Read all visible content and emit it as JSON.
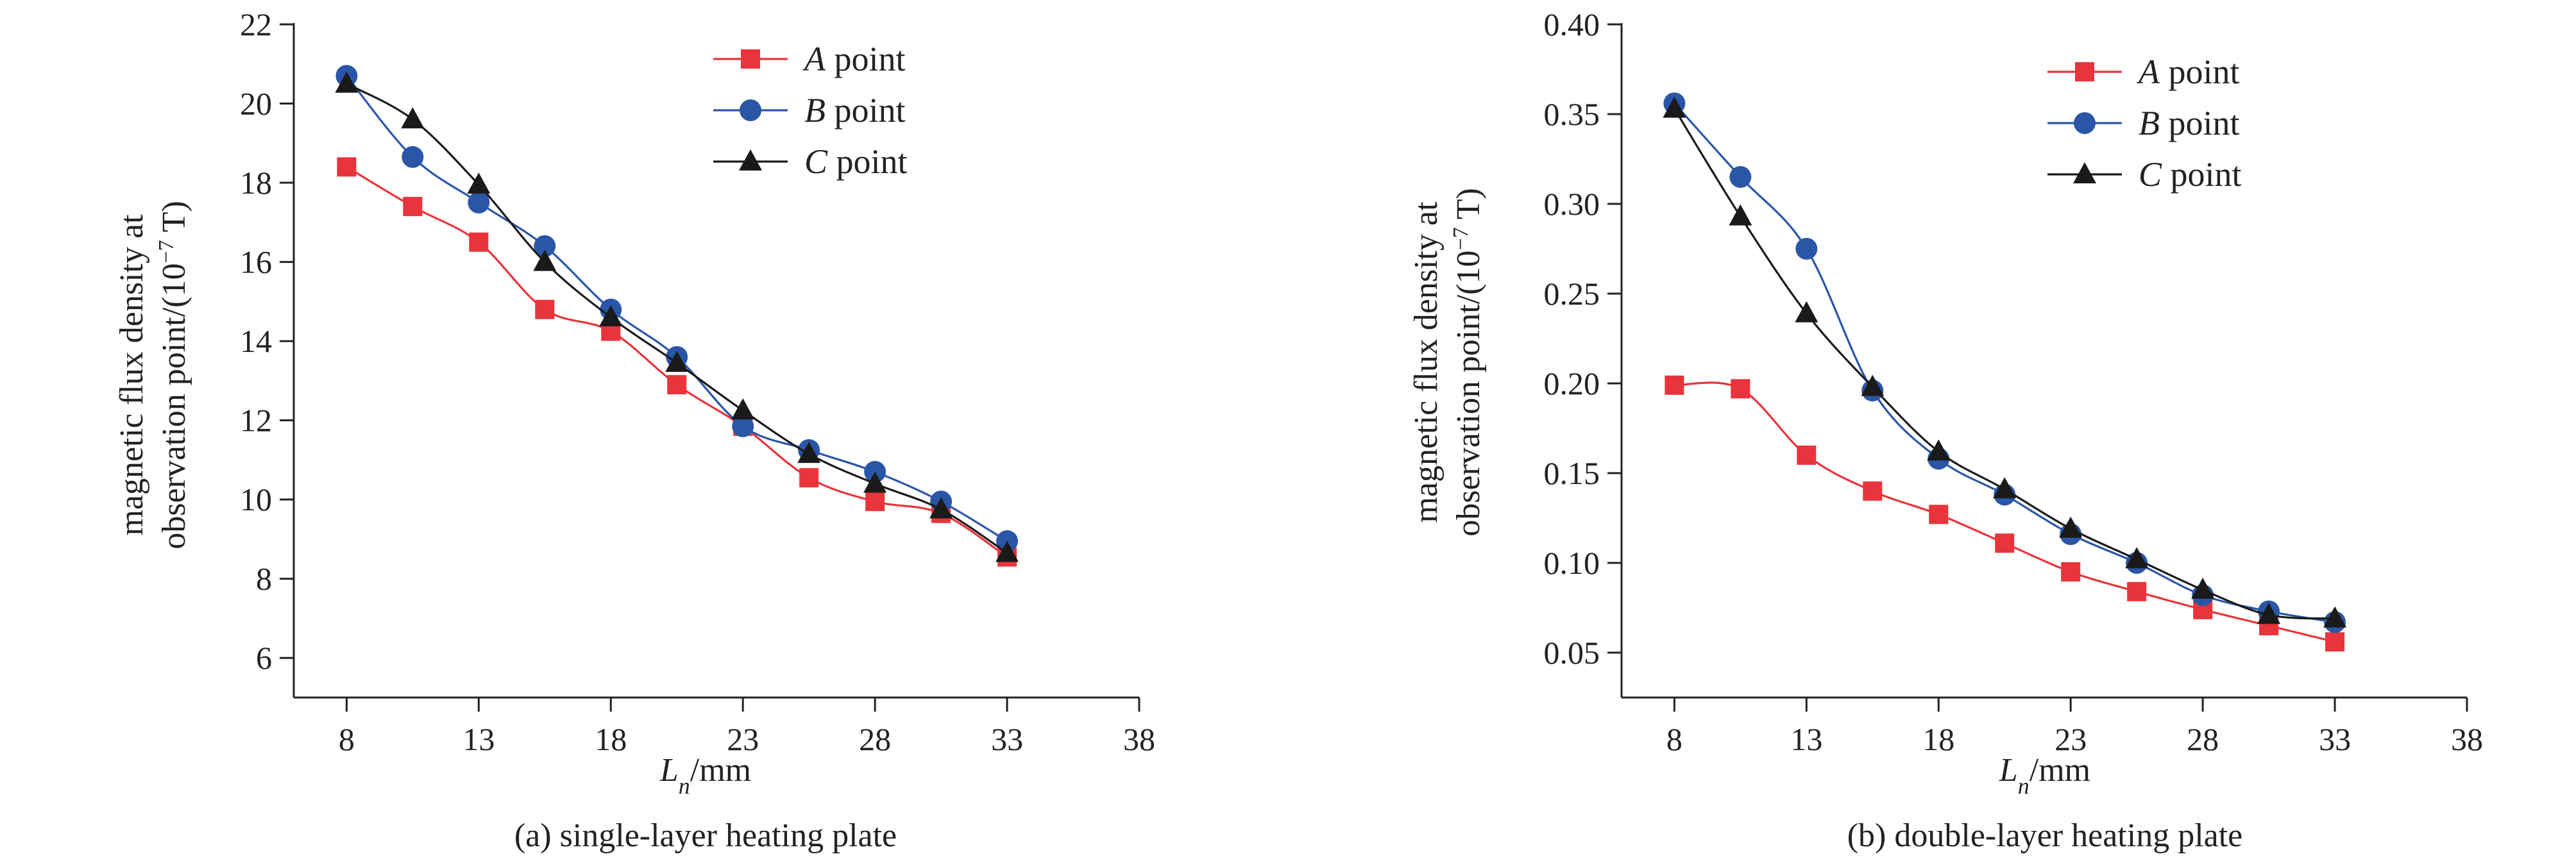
{
  "chart_data": [
    {
      "type": "line",
      "caption": "(a) single-layer heating plate",
      "xlabel_main": "L",
      "xlabel_sub": "n",
      "xlabel_unit": "/mm",
      "ylabel_line1": "magnetic flux density at",
      "ylabel_line2_prefix": "observation point/(10",
      "ylabel_exp": "−7",
      "ylabel_line2_suffix": " T)",
      "xlim": [
        6,
        38
      ],
      "ylim": [
        5,
        22
      ],
      "xticks": [
        8,
        13,
        18,
        23,
        28,
        33,
        38
      ],
      "xtick_labels": [
        "8",
        "13",
        "18",
        "23",
        "28",
        "33",
        "38"
      ],
      "yticks": [
        6,
        8,
        10,
        12,
        14,
        16,
        18,
        20,
        22
      ],
      "ytick_labels": [
        "6",
        "8",
        "10",
        "12",
        "14",
        "16",
        "18",
        "20",
        "22"
      ],
      "legend_position": "top-right",
      "series": [
        {
          "name": "A",
          "label_suffix": " point",
          "color": "#e8343a",
          "marker": "square",
          "x": [
            8,
            10.5,
            13,
            15.5,
            18,
            20.5,
            23,
            25.5,
            28,
            30.5,
            33
          ],
          "values": [
            18.4,
            17.4,
            16.5,
            14.8,
            14.25,
            12.9,
            11.85,
            10.55,
            9.95,
            9.65,
            8.55
          ]
        },
        {
          "name": "B",
          "label_suffix": " point",
          "color": "#2a56a8",
          "marker": "circle",
          "x": [
            8,
            10.5,
            13,
            15.5,
            18,
            20.5,
            23,
            25.5,
            28,
            30.5,
            33
          ],
          "values": [
            20.7,
            18.65,
            17.5,
            16.4,
            14.8,
            13.6,
            11.85,
            11.25,
            10.7,
            9.95,
            8.95
          ]
        },
        {
          "name": "C",
          "label_suffix": " point",
          "color": "#1a1a1a",
          "marker": "triangle",
          "x": [
            8,
            10.5,
            13,
            15.5,
            18,
            20.5,
            23,
            25.5,
            28,
            30.5,
            33
          ],
          "values": [
            20.5,
            19.6,
            17.95,
            16.0,
            14.6,
            13.45,
            12.25,
            11.15,
            10.4,
            9.75,
            8.65
          ]
        }
      ]
    },
    {
      "type": "line",
      "caption": "(b) double-layer heating plate",
      "xlabel_main": "L",
      "xlabel_sub": "n",
      "xlabel_unit": "/mm",
      "ylabel_line1": "magnetic flux density at",
      "ylabel_line2_prefix": "observation point/(10",
      "ylabel_exp": "−7",
      "ylabel_line2_suffix": " T)",
      "xlim": [
        6,
        38
      ],
      "ylim": [
        0.025,
        0.4
      ],
      "xticks": [
        8,
        13,
        18,
        23,
        28,
        33,
        38
      ],
      "xtick_labels": [
        "8",
        "13",
        "18",
        "23",
        "28",
        "33",
        "38"
      ],
      "yticks": [
        0.05,
        0.1,
        0.15,
        0.2,
        0.25,
        0.3,
        0.35,
        0.4
      ],
      "ytick_labels": [
        "0.05",
        "0.10",
        "0.15",
        "0.20",
        "0.25",
        "0.30",
        "0.35",
        "0.40"
      ],
      "legend_position": "top-right",
      "series": [
        {
          "name": "A",
          "label_suffix": " point",
          "color": "#e8343a",
          "marker": "square",
          "x": [
            8,
            10.5,
            13,
            15.5,
            18,
            20.5,
            23,
            25.5,
            28,
            30.5,
            33
          ],
          "values": [
            0.199,
            0.197,
            0.16,
            0.14,
            0.127,
            0.111,
            0.095,
            0.084,
            0.074,
            0.065,
            0.056
          ]
        },
        {
          "name": "B",
          "label_suffix": " point",
          "color": "#2a56a8",
          "marker": "circle",
          "x": [
            8,
            10.5,
            13,
            15.5,
            18,
            20.5,
            23,
            25.5,
            28,
            30.5,
            33
          ],
          "values": [
            0.356,
            0.315,
            0.275,
            0.196,
            0.158,
            0.138,
            0.116,
            0.1,
            0.082,
            0.073,
            0.067
          ]
        },
        {
          "name": "C",
          "label_suffix": " point",
          "color": "#1a1a1a",
          "marker": "triangle",
          "x": [
            8,
            10.5,
            13,
            15.5,
            18,
            20.5,
            23,
            25.5,
            28,
            30.5,
            33
          ],
          "values": [
            0.353,
            0.293,
            0.239,
            0.198,
            0.162,
            0.141,
            0.119,
            0.102,
            0.085,
            0.071,
            0.069
          ]
        }
      ]
    }
  ]
}
